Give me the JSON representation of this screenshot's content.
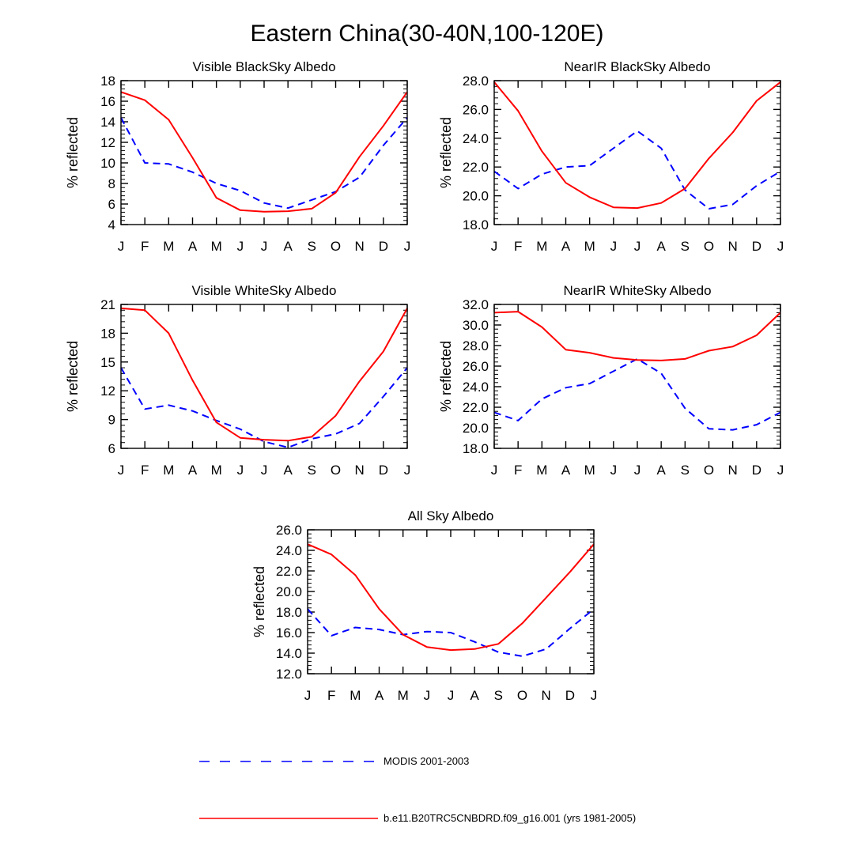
{
  "figure": {
    "title": "Eastern China(30-40N,100-120E)"
  },
  "legend": {
    "modis_label": "MODIS 2001-2003",
    "model_label": "b.e11.B20TRC5CNBDRD.f09_g16.001 (yrs 1981-2005)",
    "modis_color": "#0000ff",
    "model_color": "#ff0000"
  },
  "chart_data": [
    {
      "id": "visible-blacksky",
      "type": "line",
      "title": "Visible BlackSky Albedo",
      "ylabel": "% reflected",
      "categories": [
        "J",
        "F",
        "M",
        "A",
        "M",
        "J",
        "J",
        "A",
        "S",
        "O",
        "N",
        "D",
        "J"
      ],
      "ylim": [
        4,
        18
      ],
      "yticks": [
        "4",
        "6",
        "8",
        "10",
        "12",
        "14",
        "16",
        "18"
      ],
      "series": [
        {
          "name": "MODIS 2001-2003",
          "style": "dashed",
          "color": "#0000ff",
          "values": [
            14.4,
            10.0,
            9.9,
            9.1,
            8.0,
            7.3,
            6.1,
            5.6,
            6.4,
            7.2,
            8.6,
            11.7,
            14.4
          ]
        },
        {
          "name": "b.e11.B20TRC5CNBDRD.f09_g16.001 (yrs 1981-2005)",
          "style": "solid",
          "color": "#ff0000",
          "values": [
            16.9,
            16.1,
            14.2,
            10.5,
            6.6,
            5.4,
            5.25,
            5.3,
            5.55,
            7.1,
            10.6,
            13.6,
            16.9
          ]
        }
      ]
    },
    {
      "id": "nearir-blacksky",
      "type": "line",
      "title": "NearIR BlackSky Albedo",
      "ylabel": "% reflected",
      "categories": [
        "J",
        "F",
        "M",
        "A",
        "M",
        "J",
        "J",
        "A",
        "S",
        "O",
        "N",
        "D",
        "J"
      ],
      "ylim": [
        18,
        28
      ],
      "yticks": [
        "18.0",
        "20.0",
        "22.0",
        "24.0",
        "26.0",
        "28.0"
      ],
      "series": [
        {
          "name": "MODIS 2001-2003",
          "style": "dashed",
          "color": "#0000ff",
          "values": [
            21.7,
            20.5,
            21.5,
            22.0,
            22.1,
            23.3,
            24.5,
            23.3,
            20.4,
            19.1,
            19.4,
            20.7,
            21.7
          ]
        },
        {
          "name": "b.e11.B20TRC5CNBDRD.f09_g16.001 (yrs 1981-2005)",
          "style": "solid",
          "color": "#ff0000",
          "values": [
            27.9,
            25.9,
            23.1,
            20.9,
            19.9,
            19.2,
            19.15,
            19.5,
            20.5,
            22.6,
            24.4,
            26.6,
            27.9
          ]
        }
      ]
    },
    {
      "id": "visible-whitesky",
      "type": "line",
      "title": "Visible WhiteSky Albedo",
      "ylabel": "% reflected",
      "categories": [
        "J",
        "F",
        "M",
        "A",
        "M",
        "J",
        "J",
        "A",
        "S",
        "O",
        "N",
        "D",
        "J"
      ],
      "ylim": [
        6,
        21
      ],
      "yticks": [
        "6",
        "9",
        "12",
        "15",
        "18",
        "21"
      ],
      "series": [
        {
          "name": "MODIS 2001-2003",
          "style": "dashed",
          "color": "#0000ff",
          "values": [
            14.4,
            10.1,
            10.5,
            9.9,
            8.9,
            8.0,
            6.7,
            6.1,
            7.0,
            7.5,
            8.6,
            11.4,
            14.4
          ]
        },
        {
          "name": "b.e11.B20TRC5CNBDRD.f09_g16.001 (yrs 1981-2005)",
          "style": "solid",
          "color": "#ff0000",
          "values": [
            20.6,
            20.4,
            18.0,
            13.1,
            8.7,
            7.1,
            6.9,
            6.8,
            7.2,
            9.4,
            13.0,
            16.1,
            20.6
          ]
        }
      ]
    },
    {
      "id": "nearir-whitesky",
      "type": "line",
      "title": "NearIR WhiteSky Albedo",
      "ylabel": "% reflected",
      "categories": [
        "J",
        "F",
        "M",
        "A",
        "M",
        "J",
        "J",
        "A",
        "S",
        "O",
        "N",
        "D",
        "J"
      ],
      "ylim": [
        18,
        32
      ],
      "yticks": [
        "18.0",
        "20.0",
        "22.0",
        "24.0",
        "26.0",
        "28.0",
        "30.0",
        "32.0"
      ],
      "series": [
        {
          "name": "MODIS 2001-2003",
          "style": "dashed",
          "color": "#0000ff",
          "values": [
            21.5,
            20.7,
            22.8,
            23.9,
            24.3,
            25.5,
            26.7,
            25.3,
            21.9,
            19.9,
            19.8,
            20.3,
            21.5
          ]
        },
        {
          "name": "b.e11.B20TRC5CNBDRD.f09_g16.001 (yrs 1981-2005)",
          "style": "solid",
          "color": "#ff0000",
          "values": [
            31.2,
            31.3,
            29.8,
            27.6,
            27.3,
            26.8,
            26.6,
            26.55,
            26.7,
            27.5,
            27.9,
            29.0,
            31.2
          ]
        }
      ]
    },
    {
      "id": "all-sky",
      "type": "line",
      "title": "All Sky Albedo",
      "ylabel": "% reflected",
      "categories": [
        "J",
        "F",
        "M",
        "A",
        "M",
        "J",
        "J",
        "A",
        "S",
        "O",
        "N",
        "D",
        "J"
      ],
      "ylim": [
        12,
        26
      ],
      "yticks": [
        "12.0",
        "14.0",
        "16.0",
        "18.0",
        "20.0",
        "22.0",
        "24.0",
        "26.0"
      ],
      "series": [
        {
          "name": "MODIS 2001-2003",
          "style": "dashed",
          "color": "#0000ff",
          "values": [
            18.3,
            15.7,
            16.5,
            16.3,
            15.8,
            16.1,
            16.0,
            15.1,
            14.1,
            13.7,
            14.4,
            16.4,
            18.3
          ]
        },
        {
          "name": "b.e11.B20TRC5CNBDRD.f09_g16.001 (yrs 1981-2005)",
          "style": "solid",
          "color": "#ff0000",
          "values": [
            24.6,
            23.6,
            21.6,
            18.3,
            15.8,
            14.6,
            14.3,
            14.4,
            14.9,
            16.9,
            19.4,
            21.9,
            24.6
          ]
        }
      ]
    }
  ]
}
